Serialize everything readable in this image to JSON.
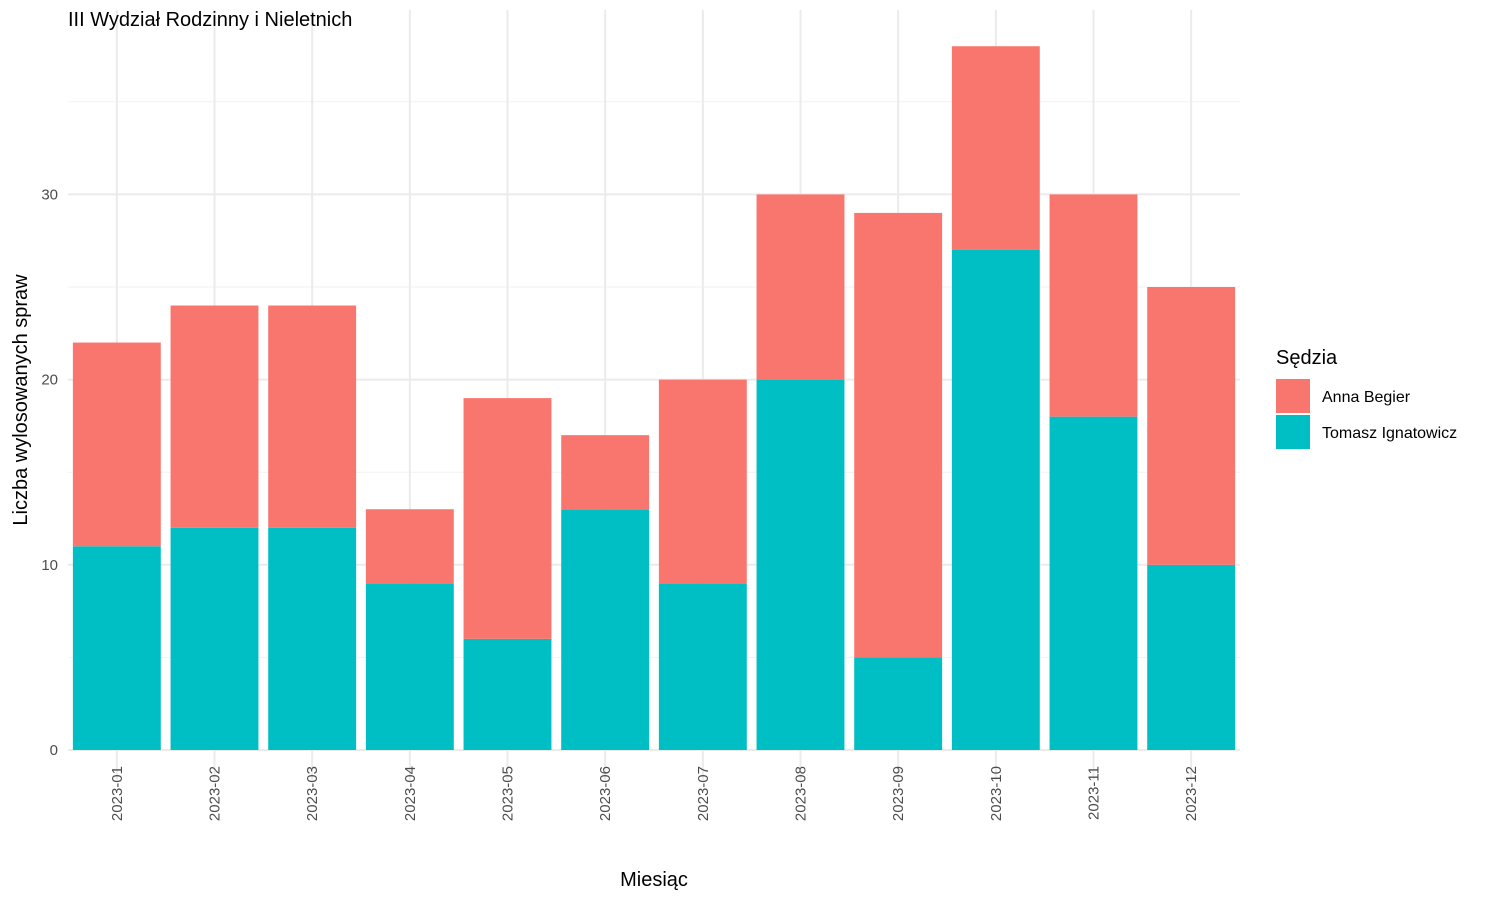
{
  "chart_data": {
    "type": "bar",
    "stacked": true,
    "title": "III Wydział Rodzinny i Nieletnich",
    "xlabel": "Miesiąc",
    "ylabel": "Liczba wylosowanych spraw",
    "categories": [
      "2023-01",
      "2023-02",
      "2023-03",
      "2023-04",
      "2023-05",
      "2023-06",
      "2023-07",
      "2023-08",
      "2023-09",
      "2023-10",
      "2023-11",
      "2023-12"
    ],
    "series": [
      {
        "name": "Tomasz Ignatowicz",
        "color": "#00BFC4",
        "values": [
          11,
          12,
          12,
          9,
          6,
          13,
          9,
          20,
          5,
          27,
          18,
          10
        ]
      },
      {
        "name": "Anna Begier",
        "color": "#F8766D",
        "values": [
          11,
          12,
          12,
          4,
          13,
          4,
          11,
          10,
          24,
          11,
          12,
          15
        ]
      }
    ],
    "ylim": [
      0,
      38
    ],
    "yticks": [
      0,
      10,
      20,
      30
    ],
    "grid": true,
    "legend": {
      "title": "Sędzia",
      "position": "right",
      "order": [
        "Anna Begier",
        "Tomasz Ignatowicz"
      ]
    }
  }
}
